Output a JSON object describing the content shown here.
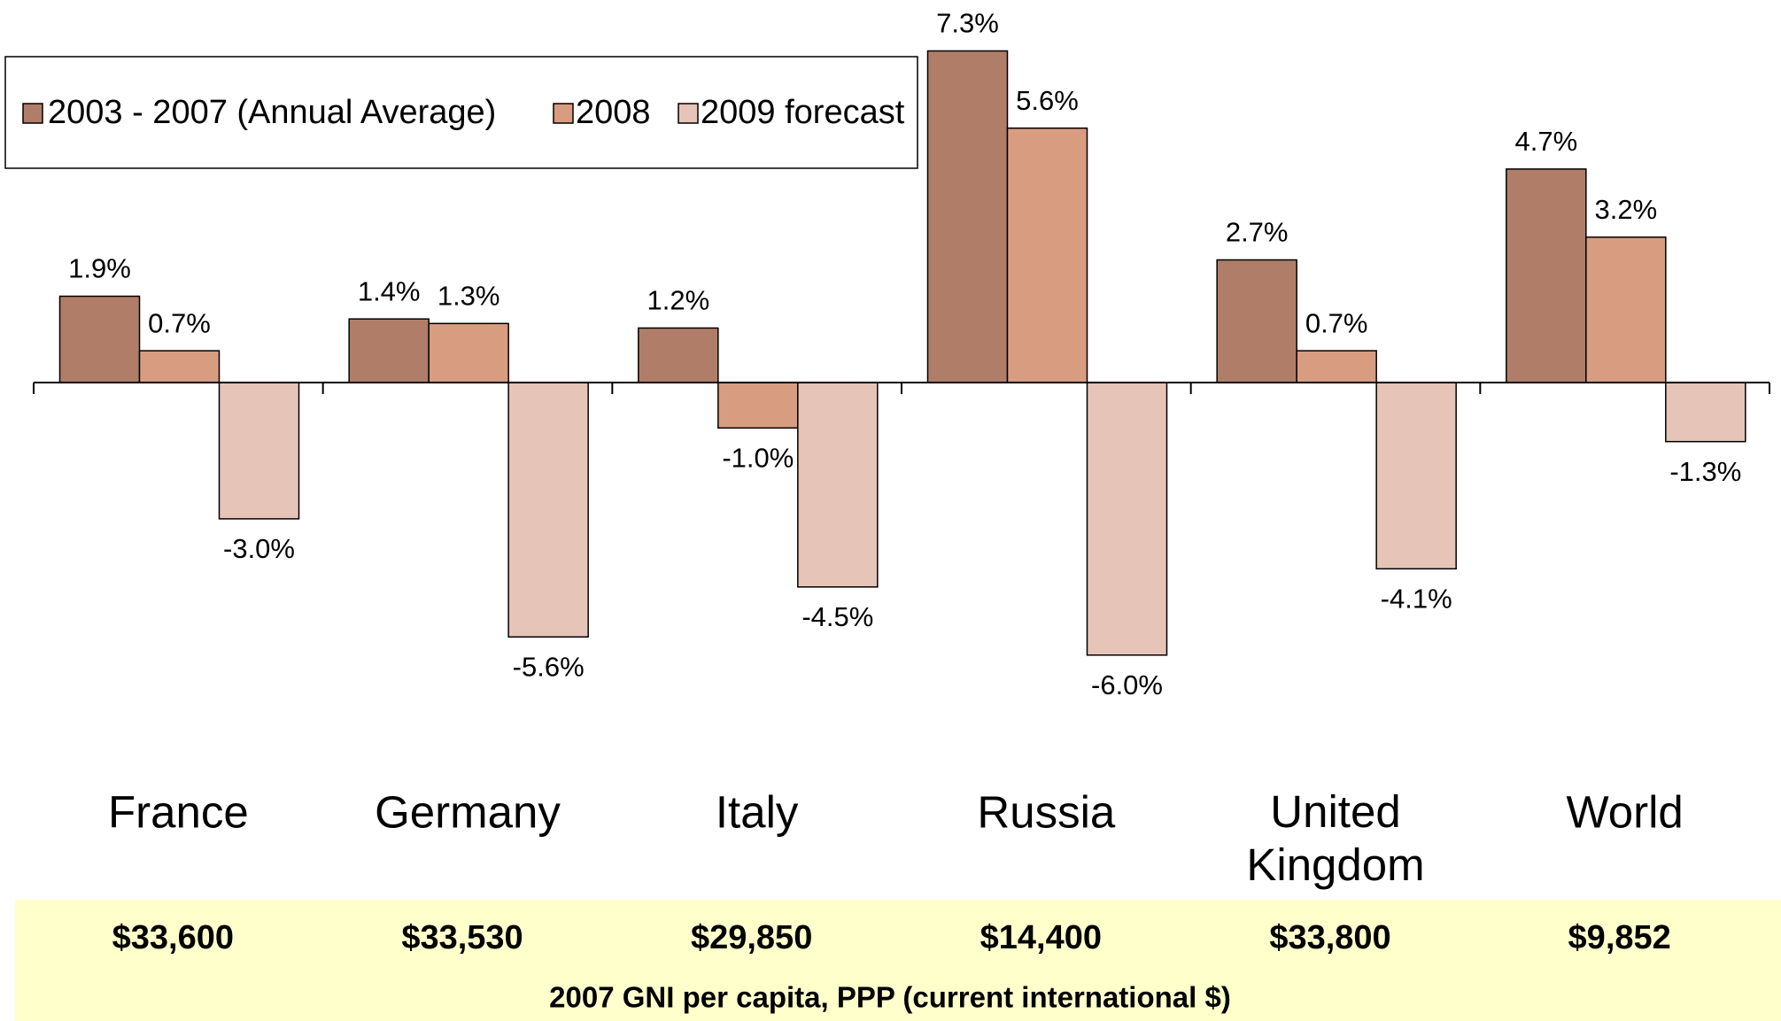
{
  "chart_data": {
    "type": "bar",
    "categories": [
      "France",
      "Germany",
      "Italy",
      "Russia",
      "United Kingdom",
      "World"
    ],
    "series": [
      {
        "name": "2003 - 2007 (Annual Average)",
        "color": "#b07e68",
        "values": [
          1.9,
          1.4,
          1.2,
          7.3,
          2.7,
          4.7
        ],
        "value_labels": [
          "1.9%",
          "1.4%",
          "1.2%",
          "7.3%",
          "2.7%",
          "4.7%"
        ]
      },
      {
        "name": "2008",
        "color": "#d89c80",
        "values": [
          0.7,
          1.3,
          -1.0,
          5.6,
          0.7,
          3.2
        ],
        "value_labels": [
          "0.7%",
          "1.3%",
          "-1.0%",
          "5.6%",
          "0.7%",
          "3.2%"
        ]
      },
      {
        "name": "2009 forecast",
        "color": "#e6c4b8",
        "values": [
          -3.0,
          -5.6,
          -4.5,
          -6.0,
          -4.1,
          -1.3
        ],
        "value_labels": [
          "-3.0%",
          "-5.6%",
          "-4.5%",
          "-6.0%",
          "-4.1%",
          "-1.3%"
        ]
      }
    ],
    "legend": "top-left",
    "gni_row": {
      "title": "2007 GNI per capita, PPP (current international $)",
      "labels": [
        "$33,600",
        "$33,530",
        "$29,850",
        "$14,400",
        "$33,800",
        "$9,852"
      ]
    }
  }
}
